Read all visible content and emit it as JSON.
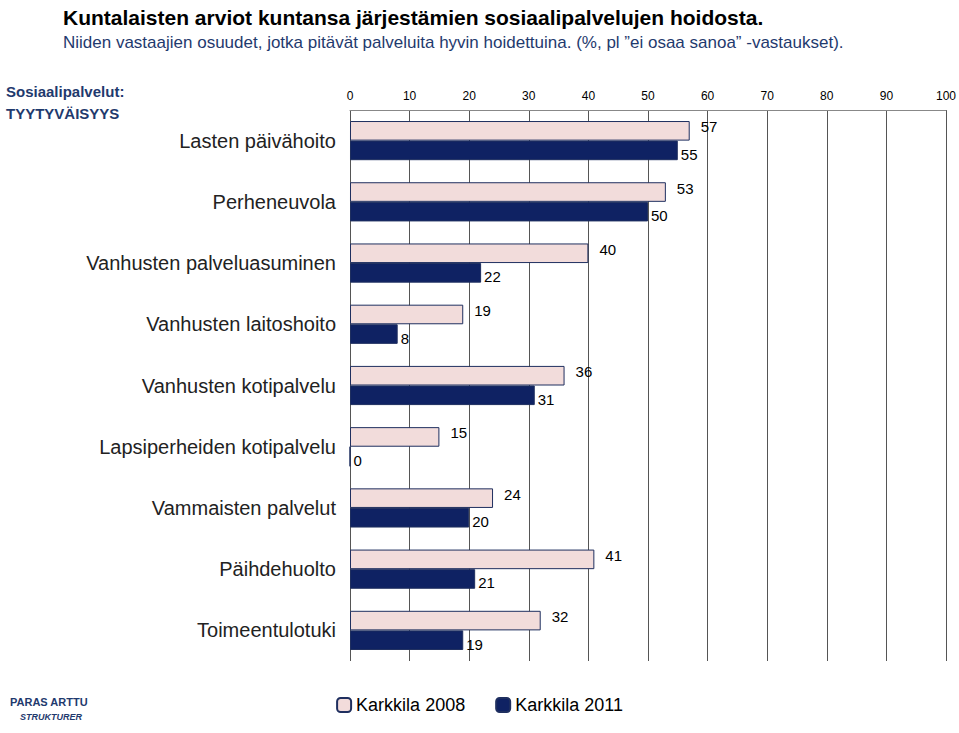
{
  "chart_data": {
    "type": "bar",
    "orientation": "horizontal",
    "title": "Kuntalaisten arviot kuntansa järjestämien sosiaalipalvelujen hoidosta.",
    "subtitle": "Niiden vastaajien osuudet, jotka pitävät palveluita hyvin hoidettuina. (%, pl ”ei osaa sanoa” -vastaukset).",
    "annotations": [
      "Sosiaalipalvelut:",
      "TYYTYVÄISYYS",
      "PARAS ARTTU",
      "STRUKTURER"
    ],
    "categories": [
      "Lasten päivähoito",
      "Perheneuvola",
      "Vanhusten palveluasuminen",
      "Vanhusten laitoshoito",
      "Vanhusten kotipalvelu",
      "Lapsiperheiden kotipalvelu",
      "Vammaisten palvelut",
      "Päihdehuolto",
      "Toimeentulotuki"
    ],
    "series": [
      {
        "name": "Karkkila 2008",
        "color": "#f2dcdb",
        "values": [
          57,
          53,
          40,
          19,
          36,
          15,
          24,
          41,
          32
        ]
      },
      {
        "name": "Karkkila 2011",
        "color": "#0f2263",
        "values": [
          55,
          50,
          22,
          8,
          31,
          0,
          20,
          21,
          19
        ]
      }
    ],
    "xlim": [
      0,
      100
    ],
    "xticks": [
      0,
      10,
      20,
      30,
      40,
      50,
      60,
      70,
      80,
      90,
      100
    ],
    "grid": true,
    "legend": "bottom",
    "data_labels": true
  }
}
